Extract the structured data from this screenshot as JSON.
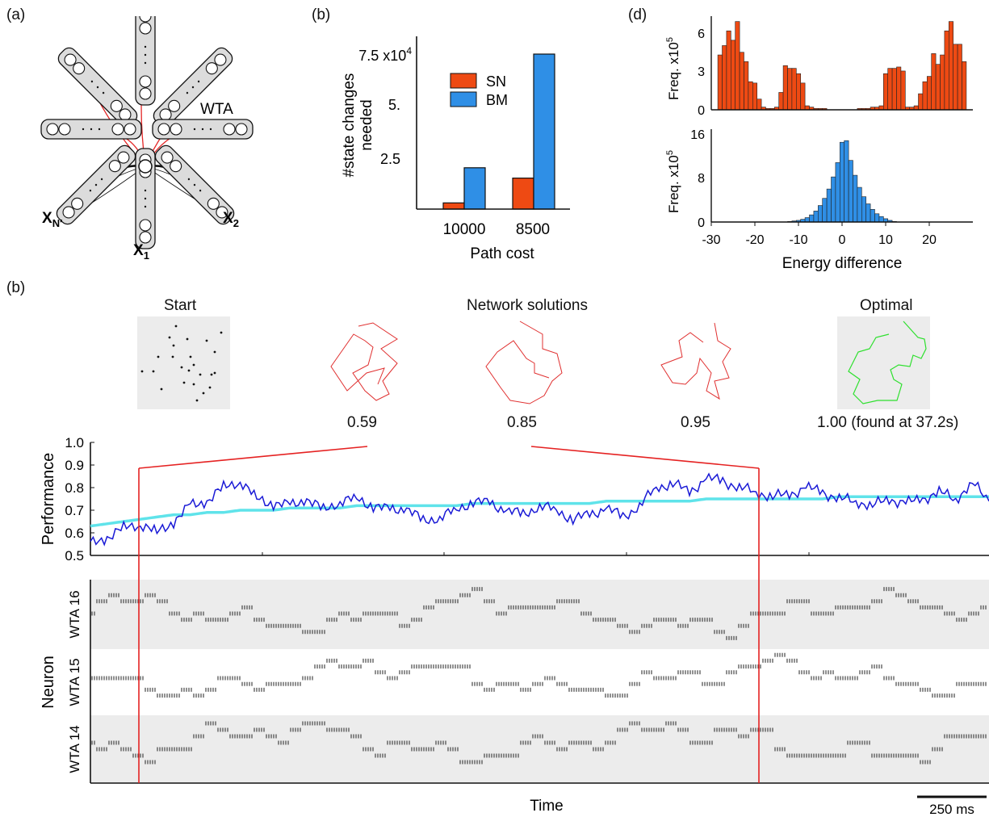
{
  "panel_labels": {
    "a": "(a)",
    "b_top": "(b)",
    "d": "(d)",
    "b_bottom": "(b)"
  },
  "network": {
    "wta_label": "WTA",
    "x1_label": "X",
    "x1_sub": "1",
    "x2_label": "X",
    "x2_sub": "2",
    "xn_label": "X",
    "xn_sub": "N′",
    "colors": {
      "module_fill": "#dcdcdc",
      "connection": "#e32626",
      "stroke": "#111111"
    }
  },
  "bar_panel": {
    "ylabel_line1": "#state changes",
    "ylabel_line2": "needed",
    "xlabel": "Path cost",
    "exponent_base": "7.5 x10",
    "exponent_power": "4",
    "ytick_labels": [
      "2.5",
      "5."
    ],
    "legend": [
      {
        "name": "SN",
        "color": "#ee4a13"
      },
      {
        "name": "BM",
        "color": "#2f8fe6"
      }
    ]
  },
  "hist_panel": {
    "xlabel": "Energy difference",
    "freq_label": "Freq. x10",
    "freq_power": "5",
    "top_yticks": [
      "0",
      "3",
      "6"
    ],
    "bottom_yticks": [
      "0",
      "8",
      "16"
    ],
    "xticks": [
      "-30",
      "-20",
      "-10",
      "0",
      "10",
      "20"
    ]
  },
  "solutions": {
    "start_title": "Start",
    "network_title": "Network solutions",
    "optimal_title": "Optimal",
    "perf_values": [
      "0.59",
      "0.85",
      "0.95"
    ],
    "optimal_value": "1.00 (found at 37.2s)"
  },
  "performance_panel": {
    "ylabel": "Performance",
    "yticks": [
      "0.5",
      "0.6",
      "0.7",
      "0.8",
      "0.9",
      "1.0"
    ],
    "colors": {
      "performance": "#1a1ad6",
      "average": "#5fe3ea",
      "highlight": "#e52222"
    }
  },
  "raster_panel": {
    "ylabel": "Neuron",
    "rows": [
      "WTA 16",
      "WTA 15",
      "WTA 14"
    ],
    "xlabel": "Time",
    "scalebar_label": "250 ms"
  },
  "chart_data": [
    {
      "type": "bar",
      "categories": [
        "10000",
        "8500"
      ],
      "series": [
        {
          "name": "SN",
          "values": [
            3000,
            15000
          ]
        },
        {
          "name": "BM",
          "values": [
            20000,
            75000
          ]
        }
      ],
      "xlabel": "Path cost",
      "ylabel": "#state changes needed",
      "ylim": [
        0,
        75000
      ]
    },
    {
      "type": "bar",
      "series": [
        {
          "name": "SN",
          "x": [
            -28,
            -27,
            -26,
            -25,
            -24,
            -23,
            -22,
            -21,
            -20,
            -19,
            -18,
            -17,
            -16,
            -15,
            -14,
            -13,
            -12,
            -11,
            -10,
            -9,
            -8,
            -7,
            -6,
            -5,
            -4,
            -3,
            -2,
            -1,
            0,
            1,
            2,
            3,
            4,
            5,
            6,
            7,
            8,
            9,
            10,
            11,
            12,
            13,
            14,
            15,
            16,
            17,
            18,
            19,
            20,
            21,
            22,
            23,
            24,
            25,
            26,
            27,
            28
          ],
          "values": [
            4.1,
            4.8,
            5.9,
            5.2,
            6.6,
            4.3,
            3.6,
            2.1,
            2.0,
            0.8,
            0.2,
            0.1,
            0.1,
            0.2,
            1.3,
            3.3,
            3.1,
            3.1,
            2.7,
            2.0,
            0.3,
            0.2,
            0.1,
            0.1,
            0.1,
            0.0,
            0.0,
            0.0,
            0.0,
            0.0,
            0.0,
            0.0,
            0.1,
            0.1,
            0.1,
            0.2,
            0.2,
            0.3,
            2.7,
            3.1,
            3.1,
            3.2,
            2.9,
            0.2,
            0.2,
            0.3,
            1.2,
            2.1,
            2.5,
            4.2,
            3.4,
            4.1,
            5.9,
            6.6,
            4.9,
            4.9,
            3.6
          ]
        }
      ],
      "xlabel": "Energy difference",
      "ylabel": "Freq. x10^5",
      "xlim": [
        -30,
        30
      ],
      "ylim": [
        0,
        7
      ]
    },
    {
      "type": "bar",
      "series": [
        {
          "name": "BM",
          "x": [
            -12,
            -11,
            -10,
            -9,
            -8,
            -7,
            -6,
            -5,
            -4,
            -3,
            -2,
            -1,
            0,
            1,
            2,
            3,
            4,
            5,
            6,
            7,
            8,
            9,
            10,
            11,
            12
          ],
          "values": [
            0.1,
            0.2,
            0.3,
            0.5,
            0.8,
            1.3,
            2.0,
            3.0,
            4.3,
            6.0,
            8.2,
            10.8,
            14.5,
            14.8,
            11.2,
            8.5,
            6.3,
            4.6,
            3.3,
            2.3,
            1.5,
            1.0,
            0.6,
            0.3,
            0.1
          ]
        }
      ],
      "xlabel": "Energy difference",
      "ylabel": "Freq. x10^5",
      "xlim": [
        -30,
        30
      ],
      "ylim": [
        0,
        16
      ]
    },
    {
      "type": "line",
      "series": [
        {
          "name": "",
          "color": "#1a1ad6",
          "values": [
            0.55,
            0.58,
            0.62,
            0.64,
            0.6,
            0.65,
            0.72,
            0.74,
            0.8,
            0.83,
            0.75,
            0.73,
            0.72,
            0.75,
            0.7,
            0.74,
            0.75,
            0.72,
            0.7,
            0.71,
            0.65,
            0.67,
            0.7,
            0.74,
            0.73,
            0.7,
            0.68,
            0.72,
            0.7,
            0.66,
            0.68,
            0.71,
            0.67,
            0.72,
            0.8,
            0.82,
            0.78,
            0.84,
            0.83,
            0.8,
            0.78,
            0.76,
            0.77,
            0.8,
            0.78,
            0.75,
            0.74,
            0.72,
            0.75,
            0.73,
            0.75,
            0.78,
            0.75,
            0.82,
            0.74
          ]
        },
        {
          "name": "",
          "color": "#5fe3ea",
          "values": [
            0.63,
            0.64,
            0.65,
            0.66,
            0.67,
            0.68,
            0.68,
            0.69,
            0.69,
            0.7,
            0.7,
            0.7,
            0.71,
            0.71,
            0.71,
            0.71,
            0.72,
            0.72,
            0.72,
            0.72,
            0.72,
            0.72,
            0.72,
            0.73,
            0.73,
            0.73,
            0.73,
            0.73,
            0.73,
            0.73,
            0.73,
            0.74,
            0.74,
            0.74,
            0.74,
            0.74,
            0.74,
            0.75,
            0.75,
            0.75,
            0.75,
            0.75,
            0.75,
            0.75,
            0.75,
            0.76,
            0.76,
            0.76,
            0.76,
            0.76,
            0.76,
            0.76,
            0.76,
            0.76,
            0.76
          ]
        }
      ],
      "ylabel": "Performance",
      "xlabel": "Time",
      "ylim": [
        0.5,
        1.0
      ]
    }
  ]
}
